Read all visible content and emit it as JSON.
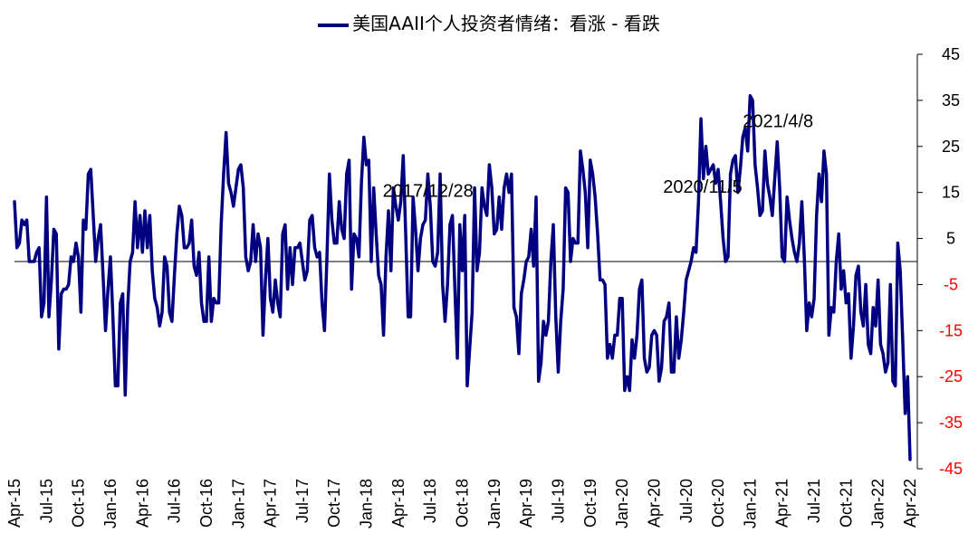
{
  "chart_data": {
    "type": "line",
    "legend": "美国AAII个人投资者情绪：看涨 - 看跌",
    "series": [
      {
        "name": "美国AAII个人投资者情绪：看涨 - 看跌",
        "color": "#000080",
        "values": [
          13,
          3,
          4,
          9,
          8,
          9,
          0,
          0,
          0,
          2,
          3,
          -12,
          -9,
          14,
          -12,
          -4,
          7,
          6,
          -19,
          -7,
          -6,
          -6,
          -5,
          1,
          0,
          4,
          1,
          -11,
          9,
          7,
          19,
          20,
          10,
          0,
          5,
          8,
          -3,
          -15,
          -6,
          1,
          -12,
          -27,
          -27,
          -9,
          -7,
          -29,
          -10,
          0,
          2,
          13,
          3,
          10,
          2,
          11,
          3,
          10,
          -2,
          -8,
          -10,
          -14,
          -11,
          1,
          -1,
          -11,
          -13,
          -3,
          6,
          12,
          10,
          3,
          3,
          4,
          9,
          -1,
          -3,
          2,
          -9,
          -13,
          -13,
          1,
          -13,
          -8,
          -9,
          -9,
          8,
          19,
          28,
          17,
          15,
          12,
          16,
          20,
          21,
          16,
          1,
          -2,
          0,
          8,
          0,
          6,
          3,
          -16,
          -4,
          5,
          -8,
          -11,
          -4,
          -9,
          -12,
          6,
          8,
          -6,
          3,
          -5,
          3,
          3,
          4,
          0,
          -4,
          -2,
          9,
          10,
          3,
          1,
          2,
          -9,
          -15,
          1,
          19,
          9,
          4,
          4,
          13,
          7,
          5,
          19,
          22,
          -6,
          6,
          5,
          1,
          17,
          27,
          21,
          22,
          0,
          16,
          6,
          -3,
          -5,
          -16,
          1,
          11,
          -2,
          16,
          12,
          9,
          13,
          23,
          6,
          -12,
          -12,
          14,
          7,
          -2,
          5,
          8,
          9,
          19,
          12,
          0,
          -1,
          2,
          19,
          -5,
          -13,
          -5,
          8,
          10,
          -6,
          -21,
          8,
          -2,
          10,
          -27,
          -19,
          -11,
          16,
          -2,
          2,
          16,
          12,
          10,
          21,
          16,
          6,
          7,
          14,
          7,
          16,
          19,
          15,
          19,
          -10,
          -12,
          -20,
          -7,
          -4,
          0,
          1,
          7,
          -1,
          14,
          -26,
          -22,
          -13,
          -16,
          -13,
          0,
          8,
          -12,
          -24,
          -13,
          -6,
          16,
          15,
          0,
          5,
          4,
          4,
          24,
          20,
          15,
          3,
          22,
          19,
          14,
          6,
          -4,
          -4,
          -5,
          -21,
          -18,
          -21,
          -16,
          -16,
          -8,
          -8,
          -28,
          -25,
          -28,
          -17,
          -21,
          -16,
          -6,
          -4,
          -21,
          -24,
          -23,
          -16,
          -15,
          -16,
          -26,
          -23,
          -13,
          -12,
          -9,
          -24,
          -24,
          -12,
          -21,
          -17,
          -11,
          -4,
          -2,
          0,
          3,
          2,
          13,
          31,
          18,
          25,
          19,
          20,
          21,
          17,
          20,
          13,
          5,
          0,
          1,
          19,
          22,
          23,
          15,
          20,
          27,
          29,
          24,
          36,
          35,
          21,
          16,
          10,
          11,
          24,
          17,
          14,
          10,
          18,
          26,
          16,
          1,
          0,
          14,
          9,
          5,
          2,
          0,
          4,
          13,
          1,
          -15,
          -9,
          -12,
          -8,
          10,
          19,
          13,
          24,
          19,
          -16,
          -10,
          -11,
          0,
          6,
          -6,
          -2,
          -9,
          -7,
          -21,
          -14,
          -3,
          -1,
          -11,
          -14,
          -5,
          -18,
          -20,
          -10,
          -14,
          -4,
          -18,
          -20,
          -24,
          -22,
          -5,
          -26,
          -27,
          4,
          -2,
          -17,
          -33,
          -25,
          -43
        ]
      }
    ],
    "x_tick_labels": [
      "Apr-15",
      "Jul-15",
      "Oct-15",
      "Jan-16",
      "Apr-16",
      "Jul-16",
      "Oct-16",
      "Jan-17",
      "Apr-17",
      "Jul-17",
      "Oct-17",
      "Jan-18",
      "Apr-18",
      "Jul-18",
      "Oct-18",
      "Jan-19",
      "Apr-19",
      "Jul-19",
      "Oct-19",
      "Jan-20",
      "Apr-20",
      "Jul-20",
      "Oct-20",
      "Jan-21",
      "Apr-21",
      "Jul-21",
      "Oct-21",
      "Jan-22",
      "Apr-22"
    ],
    "y_ticks": [
      45,
      35,
      25,
      15,
      5,
      -5,
      -15,
      -25,
      -35,
      -45
    ],
    "ylim": [
      -45,
      45
    ],
    "y_axis_side": "right",
    "negative_tick_color": "#ff0000",
    "positive_tick_color": "#000000",
    "annotations": [
      {
        "text": "2017/12/28",
        "index": 146
      },
      {
        "text": "2020/11/5",
        "index": 287
      },
      {
        "text": "2021/4/8",
        "index": 310
      }
    ]
  }
}
